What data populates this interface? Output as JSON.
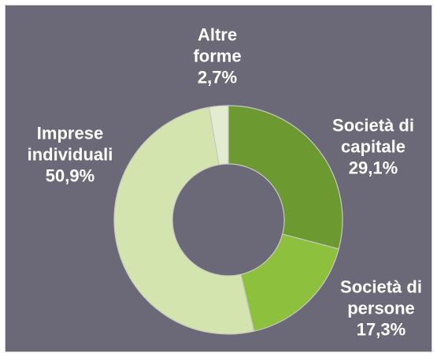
{
  "chart_data": {
    "type": "donut",
    "categories": [
      "Società di capitale",
      "Società di persone",
      "Imprese individuali",
      "Altre forme"
    ],
    "values": [
      29.1,
      17.3,
      50.9,
      2.7
    ],
    "value_labels": [
      "29,1%",
      "17,3%",
      "50,9%",
      "2,7%"
    ],
    "colors": [
      "#6c9a31",
      "#8dc03d",
      "#d3e4ae",
      "#e3ebd0"
    ]
  }
}
